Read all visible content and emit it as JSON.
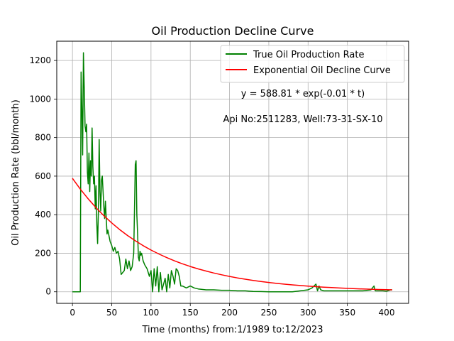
{
  "chart_data": {
    "type": "line",
    "title": "Oil Production Decline Curve",
    "xlabel": "Time (months) from:1/1989 to:12/2023",
    "ylabel": "Oil Production Rate (bbl/month)",
    "xlim": [
      -20,
      428
    ],
    "ylim": [
      -60,
      1300
    ],
    "xticks": [
      0,
      50,
      100,
      150,
      200,
      250,
      300,
      350,
      400
    ],
    "yticks": [
      0,
      200,
      400,
      600,
      800,
      1000,
      1200
    ],
    "grid": true,
    "legend": {
      "placement": "top-right",
      "entries": [
        "True Oil Production Rate",
        "Exponential Oil Decline Curve"
      ]
    },
    "annotations": [
      "y = 588.81 * exp(-0.01 * t)",
      "Api No:2511283, Well:73-31-SX-10"
    ],
    "series": [
      {
        "name": "True Oil Production Rate",
        "color": "#008000",
        "x": [
          0,
          10,
          11,
          12,
          13,
          14,
          15,
          16,
          17,
          18,
          19,
          20,
          21,
          22,
          23,
          24,
          25,
          26,
          27,
          28,
          29,
          30,
          31,
          32,
          33,
          34,
          35,
          36,
          37,
          38,
          39,
          40,
          41,
          42,
          43,
          44,
          45,
          46,
          47,
          48,
          50,
          52,
          54,
          56,
          58,
          60,
          62,
          64,
          66,
          68,
          70,
          72,
          74,
          76,
          78,
          80,
          81,
          82,
          83,
          84,
          85,
          86,
          87,
          88,
          90,
          92,
          95,
          98,
          100,
          102,
          104,
          106,
          108,
          110,
          112,
          114,
          116,
          118,
          120,
          122,
          124,
          126,
          128,
          130,
          132,
          134,
          136,
          138,
          140,
          145,
          150,
          155,
          160,
          170,
          180,
          190,
          200,
          210,
          220,
          230,
          240,
          250,
          260,
          270,
          280,
          290,
          300,
          305,
          310,
          312,
          314,
          316,
          320,
          330,
          340,
          350,
          360,
          370,
          380,
          383,
          384,
          385,
          386,
          390,
          395,
          400,
          405,
          407
        ],
        "values": [
          0,
          0,
          1140,
          950,
          710,
          1240,
          1050,
          860,
          830,
          870,
          620,
          560,
          720,
          520,
          680,
          600,
          850,
          650,
          560,
          600,
          430,
          550,
          350,
          250,
          420,
          790,
          520,
          420,
          580,
          600,
          520,
          440,
          380,
          470,
          380,
          300,
          320,
          300,
          280,
          260,
          240,
          210,
          230,
          200,
          210,
          170,
          90,
          100,
          110,
          170,
          120,
          160,
          110,
          130,
          200,
          660,
          680,
          400,
          300,
          180,
          160,
          210,
          190,
          200,
          160,
          140,
          120,
          80,
          110,
          0,
          120,
          30,
          130,
          0,
          100,
          10,
          40,
          70,
          0,
          90,
          20,
          110,
          80,
          40,
          120,
          110,
          80,
          30,
          30,
          20,
          30,
          20,
          15,
          10,
          10,
          8,
          8,
          5,
          5,
          2,
          1,
          0,
          0,
          0,
          0,
          5,
          10,
          20,
          40,
          5,
          30,
          10,
          5,
          5,
          5,
          5,
          5,
          5,
          10,
          25,
          30,
          10,
          5,
          5,
          5,
          3,
          10,
          10
        ]
      },
      {
        "name": "Exponential Oil Decline Curve",
        "color": "#ff0000",
        "x": [
          0,
          10,
          20,
          30,
          40,
          50,
          60,
          70,
          80,
          90,
          100,
          110,
          120,
          130,
          140,
          150,
          160,
          170,
          180,
          190,
          200,
          210,
          220,
          230,
          240,
          250,
          260,
          270,
          280,
          290,
          300,
          310,
          320,
          330,
          340,
          350,
          360,
          370,
          380,
          390,
          400,
          407
        ],
        "values": [
          588.8,
          532.8,
          482.1,
          436.2,
          394.7,
          357.1,
          323.1,
          292.4,
          264.6,
          239.4,
          216.6,
          196.0,
          177.3,
          160.5,
          145.2,
          131.4,
          118.9,
          107.6,
          97.3,
          88.1,
          79.7,
          72.1,
          65.2,
          59.0,
          53.4,
          48.3,
          43.7,
          39.6,
          35.8,
          32.4,
          29.3,
          26.5,
          24.0,
          21.7,
          19.7,
          17.8,
          16.1,
          14.6,
          13.2,
          11.9,
          10.8,
          10.1
        ]
      }
    ]
  }
}
